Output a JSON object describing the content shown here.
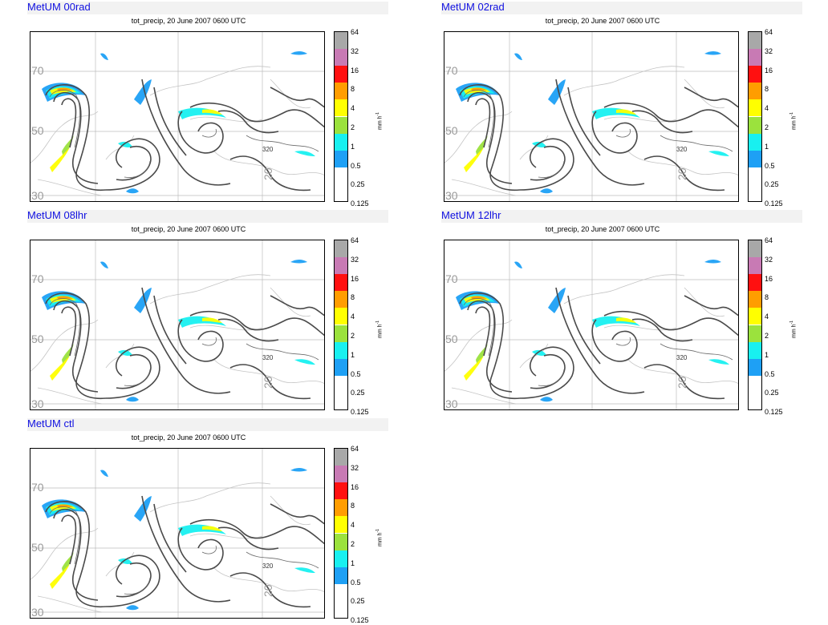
{
  "colorbar": {
    "levels": [
      "64",
      "32",
      "16",
      "8",
      "4",
      "2",
      "1",
      "0.5",
      "0.25",
      "0.125"
    ],
    "colors": [
      "#a8a8a8",
      "#c87ab4",
      "#ff1010",
      "#ff9d00",
      "#ffff00",
      "#9be23d",
      "#18f0f0",
      "#1ea0f5",
      "#ffffff"
    ],
    "units": "mm h",
    "units_exp": "-1"
  },
  "panels": [
    {
      "title": "MetUM 00rad",
      "subtitle": "tot_precip, 20 June 2007 0600 UTC"
    },
    {
      "title": "MetUM 02rad",
      "subtitle": "tot_precip, 20 June 2007 0600 UTC"
    },
    {
      "title": "MetUM 08lhr",
      "subtitle": "tot_precip, 20 June 2007 0600 UTC"
    },
    {
      "title": "MetUM 12lhr",
      "subtitle": "tot_precip, 20 June 2007 0600 UTC"
    },
    {
      "title": "MetUM ctl",
      "subtitle": "tot_precip, 20 June 2007 0600 UTC"
    }
  ],
  "map_labels": {
    "lat_70": "70",
    "lat_50": "50",
    "lat_30": "30",
    "lon_20": "20",
    "contour_320": "320"
  },
  "icons": [
    "precipitation-map",
    "colorbar"
  ]
}
